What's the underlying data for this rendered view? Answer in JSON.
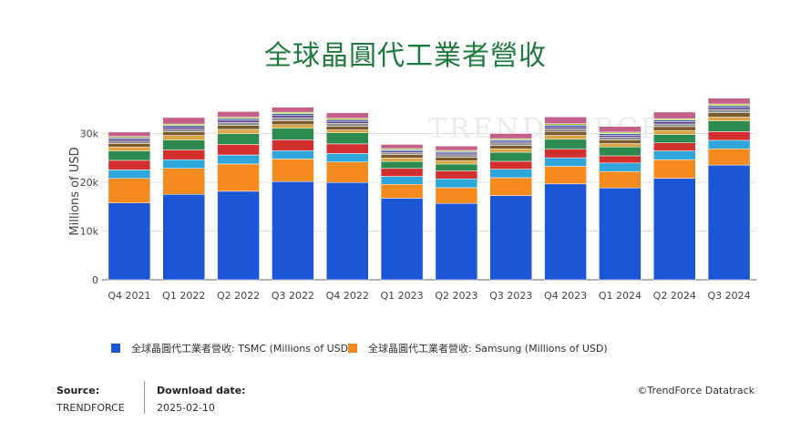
{
  "title": "全球晶圓代工業者營收",
  "colors": {
    "title": "#1e7b3c",
    "tsmc": "#1a56d6",
    "samsung": "#f58a1f",
    "others": [
      "#2fa6d9",
      "#d32f2f",
      "#2e8b4f",
      "#d9a441",
      "#7a5a2b",
      "#8e8e8e",
      "#5e3b8f",
      "#3f6b9e",
      "#b5c23a",
      "#c45f8a"
    ]
  },
  "chart_data": {
    "type": "bar",
    "stacked": true,
    "title": "全球晶圓代工業者營收",
    "ylabel": "Millions of USD",
    "xlabel": "",
    "ylim": [
      0,
      36000
    ],
    "yticks": [
      "0",
      "10k",
      "20k",
      "30k"
    ],
    "grid": true,
    "legend_position": "bottom",
    "categories": [
      "Q4 2021",
      "Q1 2022",
      "Q2 2022",
      "Q3 2022",
      "Q4 2022",
      "Q1 2023",
      "Q2 2023",
      "Q3 2023",
      "Q4 2023",
      "Q1 2024",
      "Q2 2024",
      "Q3 2024"
    ],
    "series": [
      {
        "name": "全球晶圓代工業者營收: TSMC (Millions of USD)",
        "values": [
          15750,
          17530,
          18160,
          20160,
          19960,
          16740,
          15670,
          17250,
          19660,
          18850,
          20820,
          23530
        ]
      },
      {
        "name": "全球晶圓代工業者營收: Samsung (Millions of USD)",
        "values": [
          5040,
          5330,
          5590,
          4630,
          4200,
          2840,
          3220,
          3690,
          3620,
          3360,
          3830,
          3340
        ]
      },
      {
        "values": [
          1760,
          1780,
          1850,
          1700,
          1750,
          1630,
          1820,
          1750,
          1750,
          1750,
          1800,
          1750
        ]
      },
      {
        "values": [
          1950,
          2010,
          2170,
          2210,
          1960,
          1630,
          1630,
          1620,
          1770,
          1470,
          1630,
          1770
        ]
      },
      {
        "values": [
          1950,
          2060,
          2190,
          2420,
          2270,
          1430,
          1400,
          1850,
          2020,
          1810,
          1740,
          2180
        ]
      },
      {
        "values": [
          800,
          900,
          900,
          700,
          600,
          700,
          700,
          700,
          800,
          700,
          800,
          800
        ]
      },
      {
        "values": [
          700,
          750,
          800,
          800,
          750,
          700,
          700,
          700,
          800,
          750,
          800,
          900
        ]
      },
      {
        "values": [
          500,
          550,
          600,
          650,
          600,
          450,
          500,
          500,
          550,
          550,
          550,
          600
        ]
      },
      {
        "values": [
          400,
          450,
          450,
          450,
          400,
          300,
          350,
          350,
          400,
          400,
          450,
          450
        ]
      },
      {
        "values": [
          300,
          300,
          350,
          350,
          350,
          250,
          300,
          300,
          350,
          350,
          350,
          400
        ]
      },
      {
        "values": [
          250,
          300,
          300,
          300,
          300,
          250,
          250,
          250,
          300,
          300,
          300,
          350
        ]
      },
      {
        "values": [
          900,
          1320,
          1140,
          1030,
          1100,
          840,
          900,
          1040,
          1380,
          1160,
          1330,
          1190
        ]
      }
    ]
  },
  "legend": [
    {
      "label": "全球晶圓代工業者營收: TSMC (Millions of USD)",
      "color": "#1a56d6"
    },
    {
      "label": "全球晶圓代工業者營收: Samsung (Millions of USD)",
      "color": "#f58a1f"
    }
  ],
  "watermark": "TRENDFORCE",
  "footer": {
    "source_label": "Source:",
    "source_value": "TRENDFORCE",
    "download_label": "Download date:",
    "download_value": "2025-02-10",
    "copyright": "©TrendForce Datatrack"
  }
}
